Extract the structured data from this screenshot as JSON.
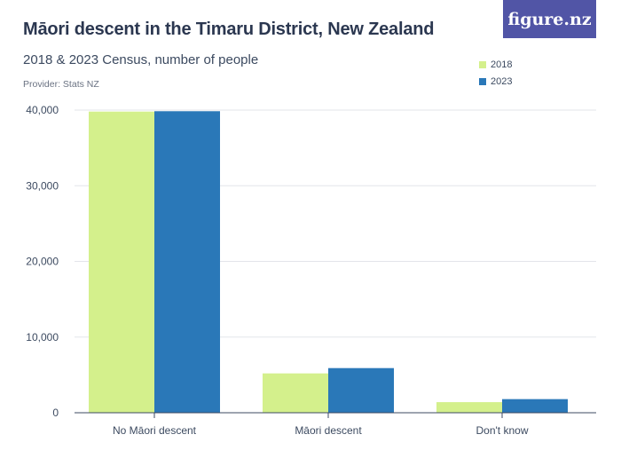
{
  "chart_data": {
    "type": "bar",
    "title": "Māori descent in the Timaru District, New Zealand",
    "subtitle": "2018 & 2023 Census, number of people",
    "provider": "Provider: Stats NZ",
    "categories": [
      "No Māori descent",
      "Māori descent",
      "Don't know"
    ],
    "series": [
      {
        "name": "2018",
        "color": "#d4f08c",
        "values": [
          39800,
          5200,
          1400
        ]
      },
      {
        "name": "2023",
        "color": "#2a78b8",
        "values": [
          39850,
          5900,
          1800
        ]
      }
    ],
    "y_ticks": [
      0,
      10000,
      20000,
      30000,
      40000
    ],
    "y_tick_labels": [
      "0",
      "10,000",
      "20,000",
      "30,000",
      "40,000"
    ],
    "ylim": [
      0,
      40000
    ],
    "legend_position": "top-right",
    "grid": true
  },
  "logo": {
    "text": "figure.nz",
    "bg": "#5155a6"
  }
}
